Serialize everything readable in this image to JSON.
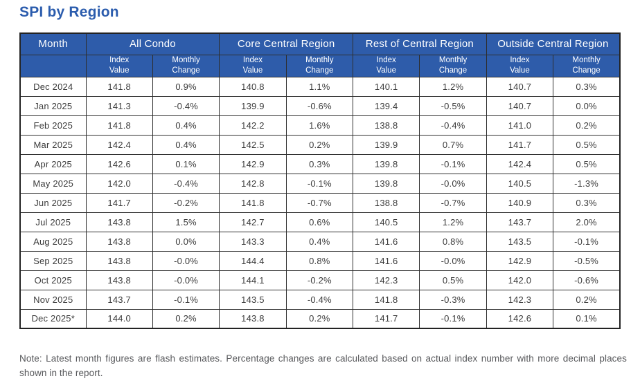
{
  "page_title": "SPI by Region",
  "colors": {
    "title_text": "#2b5cad",
    "header_bg": "#2e5caa",
    "header_text": "#ffffff",
    "cell_text": "#3b3b3b",
    "border": "#232323",
    "note_text": "#57585b"
  },
  "table": {
    "month_header": "Month",
    "region_headers": [
      "All Condo",
      "Core Central Region",
      "Rest of Central Region",
      "Outside Central Region"
    ],
    "subheaders": {
      "index_value": "Index\nValue",
      "monthly_change": "Monthly\nChange"
    },
    "rows": [
      {
        "month": "Dec 2024",
        "values": [
          "141.8",
          "0.9%",
          "140.8",
          "1.1%",
          "140.1",
          "1.2%",
          "140.7",
          "0.3%"
        ]
      },
      {
        "month": "Jan 2025",
        "values": [
          "141.3",
          "-0.4%",
          "139.9",
          "-0.6%",
          "139.4",
          "-0.5%",
          "140.7",
          "0.0%"
        ]
      },
      {
        "month": "Feb 2025",
        "values": [
          "141.8",
          "0.4%",
          "142.2",
          "1.6%",
          "138.8",
          "-0.4%",
          "141.0",
          "0.2%"
        ]
      },
      {
        "month": "Mar 2025",
        "values": [
          "142.4",
          "0.4%",
          "142.5",
          "0.2%",
          "139.9",
          "0.7%",
          "141.7",
          "0.5%"
        ]
      },
      {
        "month": "Apr 2025",
        "values": [
          "142.6",
          "0.1%",
          "142.9",
          "0.3%",
          "139.8",
          "-0.1%",
          "142.4",
          "0.5%"
        ]
      },
      {
        "month": "May 2025",
        "values": [
          "142.0",
          "-0.4%",
          "142.8",
          "-0.1%",
          "139.8",
          "-0.0%",
          "140.5",
          "-1.3%"
        ]
      },
      {
        "month": "Jun 2025",
        "values": [
          "141.7",
          "-0.2%",
          "141.8",
          "-0.7%",
          "138.8",
          "-0.7%",
          "140.9",
          "0.3%"
        ]
      },
      {
        "month": "Jul 2025",
        "values": [
          "143.8",
          "1.5%",
          "142.7",
          "0.6%",
          "140.5",
          "1.2%",
          "143.7",
          "2.0%"
        ]
      },
      {
        "month": "Aug 2025",
        "values": [
          "143.8",
          "0.0%",
          "143.3",
          "0.4%",
          "141.6",
          "0.8%",
          "143.5",
          "-0.1%"
        ]
      },
      {
        "month": "Sep 2025",
        "values": [
          "143.8",
          "-0.0%",
          "144.4",
          "0.8%",
          "141.6",
          "-0.0%",
          "142.9",
          "-0.5%"
        ]
      },
      {
        "month": "Oct 2025",
        "values": [
          "143.8",
          "-0.0%",
          "144.1",
          "-0.2%",
          "142.3",
          "0.5%",
          "142.0",
          "-0.6%"
        ]
      },
      {
        "month": "Nov 2025",
        "values": [
          "143.7",
          "-0.1%",
          "143.5",
          "-0.4%",
          "141.8",
          "-0.3%",
          "142.3",
          "0.2%"
        ]
      },
      {
        "month": "Dec 2025*",
        "values": [
          "144.0",
          "0.2%",
          "143.8",
          "0.2%",
          "141.7",
          "-0.1%",
          "142.6",
          "0.1%"
        ]
      }
    ]
  },
  "note": "Note: Latest month figures are flash estimates. Percentage changes are calculated based on actual index number with more decimal places shown in the report."
}
